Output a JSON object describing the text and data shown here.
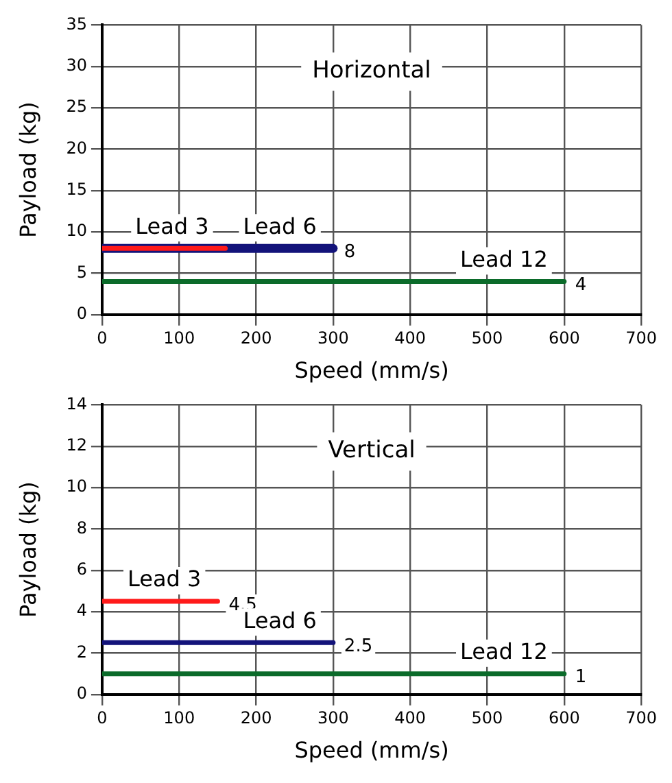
{
  "chart_data": [
    {
      "type": "line",
      "title": "Horizontal",
      "xlabel": "Speed (mm/s)",
      "ylabel": "Payload (kg)",
      "xlim": [
        0,
        700
      ],
      "xticks": [
        0,
        100,
        200,
        300,
        400,
        500,
        600,
        700
      ],
      "ylim": [
        0,
        35
      ],
      "yticks": [
        0,
        5,
        10,
        15,
        20,
        25,
        30,
        35
      ],
      "grid": true,
      "legend": false,
      "marker": "none",
      "line_style": "solid",
      "series": [
        {
          "name": "Lead 6",
          "color": "#13137a",
          "x": [
            0,
            300
          ],
          "values": [
            8,
            8
          ],
          "value_labels": [
            null,
            "8"
          ]
        },
        {
          "name": "Lead 3",
          "color": "#ff1a1a",
          "x": [
            0,
            160
          ],
          "values": [
            8,
            8
          ]
        },
        {
          "name": "Lead 12",
          "color": "#0b6b2a",
          "x": [
            0,
            600
          ],
          "values": [
            4,
            4
          ],
          "value_labels": [
            null,
            "4"
          ]
        }
      ]
    },
    {
      "type": "line",
      "title": "Vertical",
      "xlabel": "Speed (mm/s)",
      "ylabel": "Payload (kg)",
      "xlim": [
        0,
        700
      ],
      "xticks": [
        0,
        100,
        200,
        300,
        400,
        500,
        600,
        700
      ],
      "ylim": [
        0,
        14
      ],
      "yticks": [
        0,
        2,
        4,
        6,
        8,
        10,
        12,
        14
      ],
      "grid": true,
      "legend": false,
      "marker": "none",
      "line_style": "solid",
      "series": [
        {
          "name": "Lead 3",
          "color": "#ff1a1a",
          "x": [
            0,
            150
          ],
          "values": [
            4.5,
            4.5
          ],
          "value_labels": [
            null,
            "4.5"
          ]
        },
        {
          "name": "Lead 6",
          "color": "#13137a",
          "x": [
            0,
            300
          ],
          "values": [
            2.5,
            2.5
          ],
          "value_labels": [
            null,
            "2.5"
          ]
        },
        {
          "name": "Lead 12",
          "color": "#0b6b2a",
          "x": [
            0,
            600
          ],
          "values": [
            1,
            1
          ],
          "value_labels": [
            null,
            "1"
          ]
        }
      ]
    }
  ]
}
